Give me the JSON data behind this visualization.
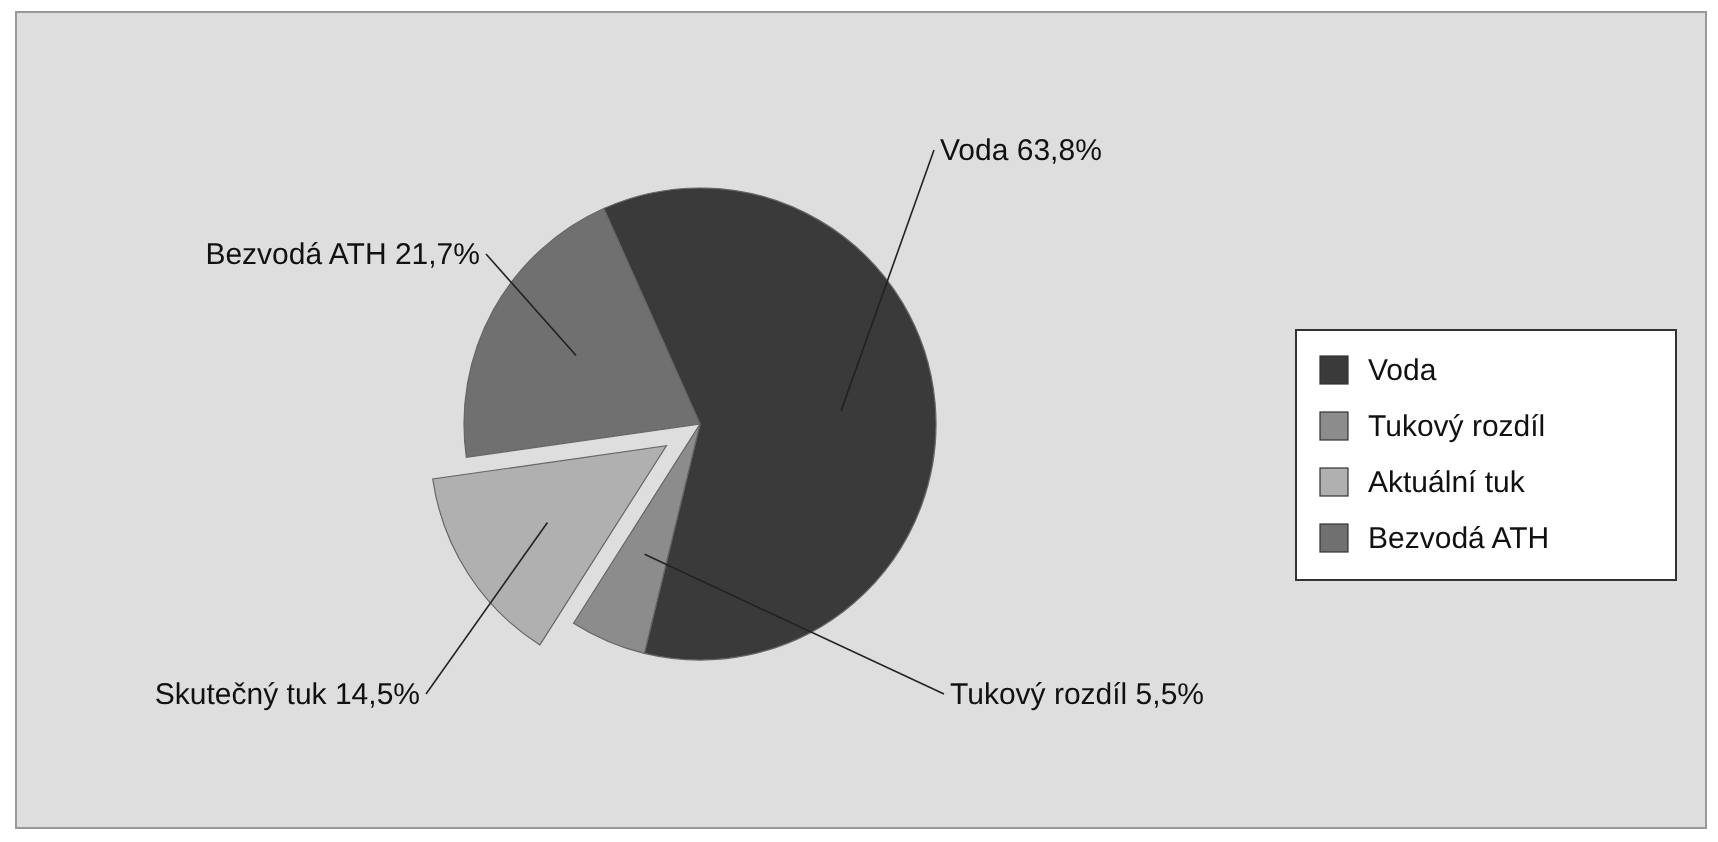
{
  "chart_data": {
    "type": "pie",
    "categories": [
      "Voda",
      "Tukový rozdíl",
      "Aktuální tuk",
      "Bezvodá ATH"
    ],
    "values": [
      63.8,
      5.5,
      14.5,
      21.7
    ],
    "colors": [
      "#3a3a3a",
      "#8c8c8c",
      "#b0b0b0",
      "#707070"
    ],
    "value_labels": [
      "Voda 63,8%",
      "Tukový rozdíl 5,5%",
      "Skutečný tuk 14,5%",
      "Bezvodá ATH 21,7%"
    ],
    "legend": "right"
  }
}
